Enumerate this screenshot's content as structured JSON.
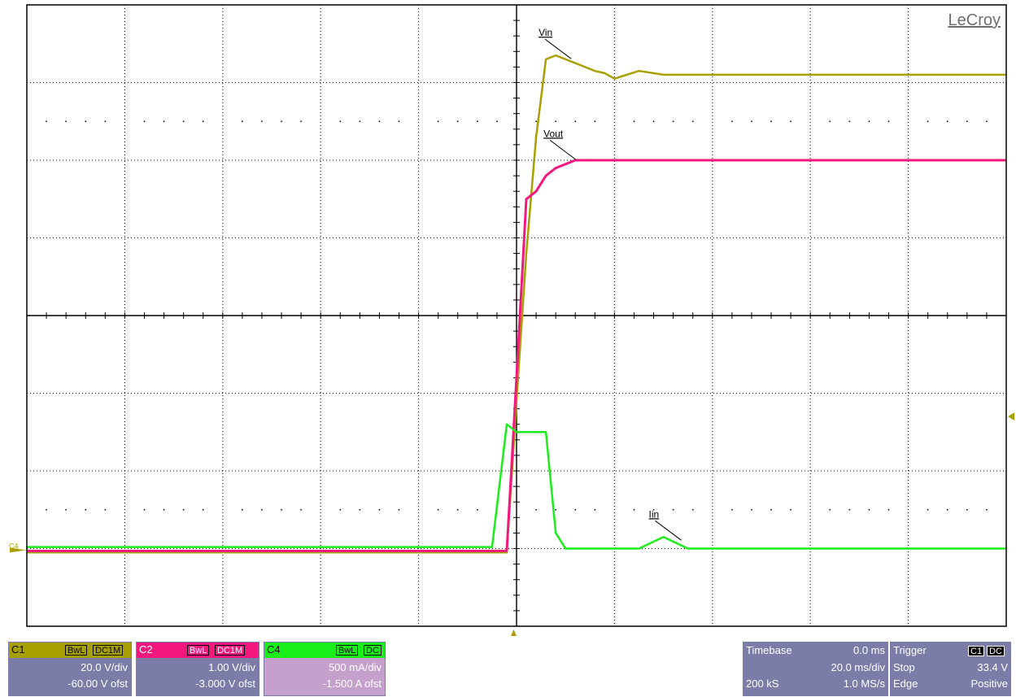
{
  "brand": "LeCroy",
  "colors": {
    "grid_bg": "#ffffff",
    "grid_line": "#000000",
    "c1": "#a8a000",
    "c2": "#f2187e",
    "c4": "#1aee1a",
    "panel": "#7c7ca8",
    "panel_c4": "#c6a0cc"
  },
  "chart_data": {
    "type": "line",
    "x": [
      -100,
      -5,
      -2,
      0,
      2,
      4,
      6,
      8,
      10,
      12,
      14,
      16,
      18,
      20,
      25,
      30,
      35,
      40,
      45,
      50,
      55,
      60,
      65,
      70,
      75,
      80,
      85,
      90,
      95,
      100
    ],
    "xlim": [
      -100,
      100
    ],
    "ylim": [
      -4,
      4
    ],
    "grid": true,
    "series": [
      {
        "name": "Vin",
        "channel": "C1",
        "values": [
          -3.05,
          -3.05,
          -3.05,
          -1.1,
          0.8,
          2.3,
          3.3,
          3.35,
          3.3,
          3.25,
          3.2,
          3.15,
          3.12,
          3.05,
          3.15,
          3.1,
          3.1,
          3.1,
          3.1,
          3.1,
          3.1,
          3.1,
          3.1,
          3.1,
          3.1,
          3.1,
          3.1,
          3.1,
          3.1,
          3.1
        ]
      },
      {
        "name": "Vout",
        "channel": "C2",
        "values": [
          -3.03,
          -3.03,
          -3.03,
          -0.8,
          1.5,
          1.6,
          1.8,
          1.9,
          1.95,
          2.0,
          2.0,
          2.0,
          2.0,
          2.0,
          2.0,
          2.0,
          2.0,
          2.0,
          2.0,
          2.0,
          2.0,
          2.0,
          2.0,
          2.0,
          2.0,
          2.0,
          2.0,
          2.0,
          2.0,
          2.0
        ]
      },
      {
        "name": "Iin",
        "channel": "C4",
        "values": [
          -2.98,
          -2.98,
          -1.4,
          -1.5,
          -1.5,
          -1.5,
          -1.5,
          -2.8,
          -3.0,
          -3.0,
          -3.0,
          -3.0,
          -3.0,
          -3.0,
          -3.0,
          -2.85,
          -3.0,
          -3.0,
          -3.0,
          -3.0,
          -3.0,
          -3.0,
          -3.0,
          -3.0,
          -3.0,
          -3.0,
          -3.0,
          -3.0,
          -3.0,
          -3.0
        ]
      }
    ],
    "labels": [
      {
        "text": "Vin",
        "x": 4.5,
        "y": 3.6
      },
      {
        "text": "Vout",
        "x": 5.5,
        "y": 2.3
      },
      {
        "text": "Iin",
        "x": 27,
        "y": -2.6
      }
    ],
    "ground_marker": "C4",
    "trigger_level_div": -1.3
  },
  "channels": [
    {
      "name": "C1",
      "tags": [
        "BwL",
        "DC1M"
      ],
      "scale": "20.0 V/div",
      "offset": "-60.00 V ofst"
    },
    {
      "name": "C2",
      "tags": [
        "BwL",
        "DC1M"
      ],
      "scale": "1.00 V/div",
      "offset": "-3.000 V ofst"
    },
    {
      "name": "C4",
      "tags": [
        "BwL",
        "DC"
      ],
      "scale": "500 mA/div",
      "offset": "-1.500 A ofst"
    }
  ],
  "timebase": {
    "label": "Timebase",
    "delay": "0.0 ms",
    "scale": "20.0 ms/div",
    "samples": "200 kS",
    "rate": "1.0 MS/s"
  },
  "trigger": {
    "label": "Trigger",
    "tag1": "C1",
    "tag2": "DC",
    "mode": "Stop",
    "level": "33.4 V",
    "type": "Edge",
    "slope": "Positive"
  }
}
